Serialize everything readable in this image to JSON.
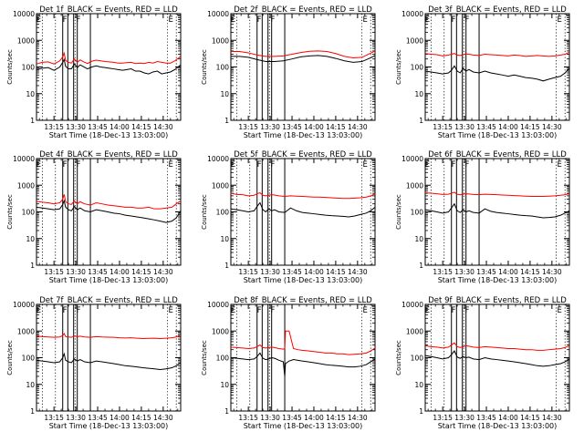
{
  "x_axis": {
    "tick_labels": [
      "13:15",
      "13:30",
      "13:45",
      "14:00",
      "14:15",
      "14:30"
    ],
    "tick_values_min": [
      735,
      750,
      765,
      780,
      795,
      810
    ],
    "range_min": [
      723,
      822
    ],
    "label": "Start Time (18-Dec-13 13:03:00)"
  },
  "y_axis": {
    "label": "Counts/sec",
    "scale": "log",
    "range": [
      1,
      10000
    ],
    "tick_labels": [
      "1",
      "10",
      "100",
      "1000",
      "10000"
    ],
    "tick_values": [
      1,
      10,
      100,
      1000,
      10000
    ]
  },
  "colors": {
    "events": "#000000",
    "lld": "#ff0000",
    "axes": "#000000"
  },
  "markers": {
    "solid_lines_min": [
      741,
      744.5,
      748.5,
      751,
      760
    ],
    "dotted_lines_min": [
      727,
      736,
      749.5,
      813,
      819
    ],
    "labels": [
      {
        "text": "E",
        "x_min": 724.5
      },
      {
        "text": "F",
        "x_min": 742.5
      },
      {
        "text": "F",
        "x_min": 751.8
      },
      {
        "text": "E",
        "x_min": 815.2
      }
    ]
  },
  "chart_data": [
    {
      "type": "line",
      "title": "Det 1f_BLACK = Events, RED = LLD",
      "xlabel": "Start Time (18-Dec-13 13:03:00)",
      "ylabel": "Counts/sec",
      "ylim": [
        1,
        10000
      ],
      "yscale": "log",
      "x": [
        723,
        727,
        731,
        735,
        739,
        741,
        742,
        743,
        745,
        747,
        749,
        751,
        753,
        755,
        758,
        761,
        764,
        767,
        770,
        773,
        776,
        779,
        782,
        785,
        788,
        791,
        794,
        797,
        800,
        803,
        806,
        809,
        812,
        815,
        818,
        822
      ],
      "series": [
        {
          "name": "LLD",
          "values": [
            130,
            150,
            155,
            130,
            170,
            240,
            330,
            175,
            150,
            140,
            200,
            150,
            185,
            160,
            135,
            165,
            180,
            170,
            160,
            155,
            150,
            140,
            140,
            145,
            150,
            135,
            140,
            135,
            150,
            140,
            160,
            150,
            140,
            140,
            170,
            250
          ]
        },
        {
          "name": "Events",
          "values": [
            80,
            90,
            95,
            75,
            100,
            150,
            190,
            105,
            85,
            85,
            130,
            95,
            120,
            105,
            85,
            100,
            110,
            100,
            95,
            90,
            85,
            80,
            75,
            80,
            85,
            70,
            70,
            60,
            55,
            65,
            70,
            55,
            60,
            65,
            80,
            120
          ]
        }
      ]
    },
    {
      "type": "line",
      "title": "Det 2f_BLACK = Events, RED = LLD",
      "xlabel": "Start Time (18-Dec-13 13:03:00)",
      "ylabel": "Counts/sec",
      "ylim": [
        1,
        10000
      ],
      "yscale": "log",
      "x": [
        723,
        729,
        735,
        741,
        747,
        753,
        759,
        765,
        771,
        777,
        783,
        789,
        795,
        801,
        807,
        813,
        819,
        822
      ],
      "series": [
        {
          "name": "LLD",
          "values": [
            380,
            380,
            340,
            280,
            250,
            250,
            260,
            300,
            350,
            390,
            400,
            380,
            320,
            250,
            220,
            230,
            330,
            400
          ]
        },
        {
          "name": "Events",
          "values": [
            250,
            250,
            230,
            190,
            160,
            160,
            170,
            200,
            240,
            260,
            270,
            250,
            210,
            170,
            150,
            160,
            220,
            270
          ]
        }
      ]
    },
    {
      "type": "line",
      "title": "Det 3f_BLACK = Events, RED = LLD",
      "xlabel": "Start Time (18-Dec-13 13:03:00)",
      "ylabel": "Counts/sec",
      "ylim": [
        1,
        10000
      ],
      "yscale": "log",
      "x": [
        723,
        727,
        731,
        735,
        739,
        741,
        743,
        745,
        747,
        749,
        751,
        753,
        756,
        760,
        764,
        768,
        772,
        776,
        780,
        784,
        788,
        792,
        796,
        800,
        804,
        808,
        812,
        816,
        819,
        822
      ],
      "series": [
        {
          "name": "LLD",
          "values": [
            320,
            300,
            290,
            260,
            280,
            300,
            320,
            280,
            270,
            290,
            310,
            300,
            280,
            270,
            300,
            290,
            280,
            270,
            260,
            280,
            270,
            250,
            260,
            270,
            260,
            250,
            260,
            280,
            300,
            360
          ]
        },
        {
          "name": "Events",
          "values": [
            70,
            65,
            60,
            55,
            60,
            75,
            110,
            70,
            60,
            90,
            70,
            80,
            65,
            60,
            70,
            60,
            55,
            50,
            45,
            50,
            45,
            40,
            38,
            35,
            30,
            35,
            40,
            45,
            60,
            90
          ]
        }
      ]
    },
    {
      "type": "line",
      "title": "Det 4f_BLACK = Events, RED = LLD",
      "xlabel": "Start Time (18-Dec-13 13:03:00)",
      "ylabel": "Counts/sec",
      "ylim": [
        1,
        10000
      ],
      "yscale": "log",
      "x": [
        723,
        727,
        731,
        735,
        739,
        741,
        742,
        743,
        745,
        747,
        749,
        751,
        753,
        756,
        760,
        764,
        768,
        772,
        776,
        780,
        784,
        788,
        792,
        796,
        800,
        804,
        808,
        812,
        816,
        819,
        822
      ],
      "series": [
        {
          "name": "LLD",
          "values": [
            250,
            230,
            220,
            200,
            220,
            300,
            450,
            240,
            200,
            190,
            260,
            200,
            240,
            200,
            180,
            220,
            200,
            180,
            170,
            160,
            150,
            150,
            140,
            140,
            150,
            130,
            130,
            140,
            150,
            200,
            260
          ]
        },
        {
          "name": "Events",
          "values": [
            150,
            140,
            130,
            120,
            130,
            190,
            260,
            150,
            120,
            110,
            160,
            120,
            140,
            110,
            100,
            120,
            110,
            100,
            90,
            85,
            75,
            70,
            65,
            60,
            55,
            50,
            45,
            40,
            45,
            60,
            110
          ]
        }
      ]
    },
    {
      "type": "line",
      "title": "Det 5f_BLACK = Events, RED = LLD",
      "xlabel": "Start Time (18-Dec-13 13:03:00)",
      "ylabel": "Counts/sec",
      "ylim": [
        1,
        10000
      ],
      "yscale": "log",
      "x": [
        723,
        727,
        731,
        735,
        739,
        741,
        743,
        745,
        747,
        749,
        751,
        753,
        756,
        760,
        764,
        768,
        772,
        776,
        780,
        784,
        788,
        792,
        796,
        800,
        804,
        808,
        812,
        816,
        819,
        822
      ],
      "series": [
        {
          "name": "LLD",
          "values": [
            500,
            450,
            440,
            400,
            420,
            480,
            520,
            420,
            400,
            420,
            440,
            430,
            400,
            380,
            400,
            390,
            380,
            370,
            360,
            360,
            350,
            340,
            330,
            320,
            320,
            330,
            340,
            360,
            400,
            480
          ]
        },
        {
          "name": "Events",
          "values": [
            130,
            120,
            110,
            100,
            110,
            160,
            220,
            120,
            100,
            130,
            110,
            120,
            100,
            95,
            140,
            110,
            95,
            90,
            85,
            80,
            75,
            72,
            70,
            68,
            65,
            70,
            80,
            90,
            110,
            150
          ]
        }
      ]
    },
    {
      "type": "line",
      "title": "Det 6f_BLACK = Events, RED = LLD",
      "xlabel": "Start Time (18-Dec-13 13:03:00)",
      "ylabel": "Counts/sec",
      "ylim": [
        1,
        10000
      ],
      "yscale": "log",
      "x": [
        723,
        727,
        731,
        735,
        739,
        741,
        743,
        745,
        747,
        749,
        751,
        753,
        756,
        760,
        764,
        768,
        772,
        776,
        780,
        784,
        788,
        792,
        796,
        800,
        804,
        808,
        812,
        816,
        819,
        822
      ],
      "series": [
        {
          "name": "LLD",
          "values": [
            520,
            500,
            480,
            450,
            460,
            500,
            540,
            460,
            440,
            460,
            480,
            470,
            450,
            440,
            460,
            450,
            440,
            430,
            420,
            410,
            400,
            390,
            380,
            380,
            380,
            390,
            400,
            420,
            440,
            480
          ]
        },
        {
          "name": "Events",
          "values": [
            120,
            110,
            100,
            90,
            100,
            140,
            200,
            110,
            95,
            120,
            100,
            110,
            95,
            90,
            130,
            105,
            95,
            90,
            85,
            80,
            75,
            72,
            70,
            65,
            60,
            62,
            65,
            75,
            90,
            110
          ]
        }
      ]
    },
    {
      "type": "line",
      "title": "Det 7f_BLACK = Events, RED = LLD",
      "xlabel": "Start Time (18-Dec-13 13:03:00)",
      "ylabel": "Counts/sec",
      "ylim": [
        1,
        10000
      ],
      "yscale": "log",
      "x": [
        723,
        727,
        731,
        735,
        739,
        741,
        742,
        743,
        745,
        747,
        749,
        751,
        753,
        756,
        760,
        764,
        768,
        772,
        776,
        780,
        784,
        788,
        792,
        796,
        800,
        804,
        808,
        812,
        816,
        819,
        822
      ],
      "series": [
        {
          "name": "LLD",
          "values": [
            650,
            620,
            600,
            580,
            600,
            680,
            800,
            620,
            600,
            580,
            650,
            620,
            640,
            600,
            580,
            620,
            600,
            590,
            580,
            560,
            550,
            560,
            540,
            520,
            530,
            540,
            520,
            540,
            560,
            600,
            700
          ]
        },
        {
          "name": "Events",
          "values": [
            80,
            75,
            70,
            65,
            70,
            100,
            140,
            80,
            70,
            65,
            90,
            75,
            85,
            70,
            65,
            75,
            70,
            65,
            60,
            55,
            50,
            48,
            45,
            42,
            40,
            38,
            36,
            38,
            42,
            50,
            65
          ]
        }
      ]
    },
    {
      "type": "line",
      "title": "Det 8f_BLACK = Events, RED = LLD",
      "xlabel": "Start Time (18-Dec-13 13:03:00)",
      "ylabel": "Counts/sec",
      "ylim": [
        1,
        10000
      ],
      "yscale": "log",
      "x": [
        723,
        727,
        731,
        735,
        739,
        741,
        743,
        745,
        747,
        749,
        751,
        753,
        756,
        759,
        760,
        760.5,
        763,
        766,
        769,
        772,
        776,
        780,
        784,
        788,
        792,
        796,
        800,
        804,
        808,
        812,
        816,
        819,
        822
      ],
      "series": [
        {
          "name": "LLD",
          "values": [
            250,
            240,
            230,
            220,
            230,
            260,
            300,
            240,
            230,
            240,
            250,
            240,
            220,
            210,
            220,
            1000,
            1000,
            220,
            200,
            190,
            180,
            170,
            160,
            150,
            150,
            140,
            140,
            130,
            135,
            140,
            150,
            180,
            230
          ]
        },
        {
          "name": "Events",
          "values": [
            100,
            95,
            90,
            85,
            90,
            110,
            150,
            95,
            85,
            90,
            100,
            95,
            80,
            70,
            20,
            60,
            75,
            85,
            80,
            75,
            70,
            65,
            60,
            55,
            52,
            50,
            48,
            45,
            45,
            48,
            55,
            70,
            90
          ]
        }
      ]
    },
    {
      "type": "line",
      "title": "Det 9f_BLACK = Events, RED = LLD",
      "xlabel": "Start Time (18-Dec-13 13:03:00)",
      "ylabel": "Counts/sec",
      "ylim": [
        1,
        10000
      ],
      "yscale": "log",
      "x": [
        723,
        727,
        731,
        735,
        739,
        741,
        743,
        745,
        747,
        749,
        751,
        753,
        756,
        760,
        764,
        768,
        772,
        776,
        780,
        784,
        788,
        792,
        796,
        800,
        804,
        808,
        812,
        816,
        819,
        822
      ],
      "series": [
        {
          "name": "LLD",
          "values": [
            280,
            260,
            250,
            230,
            250,
            300,
            360,
            260,
            240,
            260,
            280,
            270,
            250,
            240,
            260,
            250,
            240,
            230,
            220,
            220,
            210,
            200,
            200,
            190,
            190,
            200,
            210,
            220,
            240,
            280
          ]
        },
        {
          "name": "Events",
          "values": [
            120,
            110,
            100,
            90,
            100,
            130,
            180,
            105,
            95,
            110,
            100,
            105,
            90,
            85,
            100,
            90,
            85,
            80,
            75,
            70,
            65,
            60,
            55,
            50,
            48,
            50,
            55,
            60,
            70,
            90
          ]
        }
      ]
    }
  ]
}
